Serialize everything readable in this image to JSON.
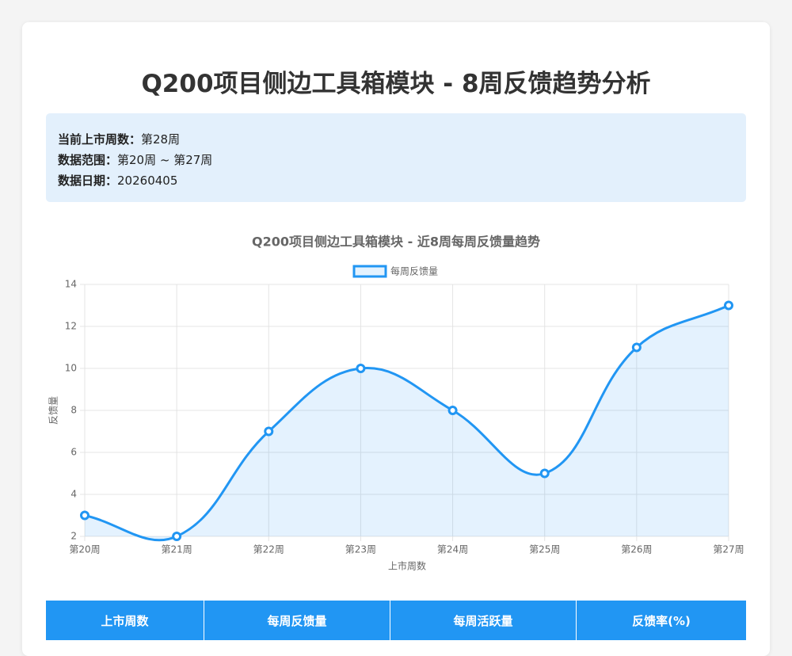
{
  "header": {
    "title": "Q200项目侧边工具箱模块 - 8周反馈趋势分析"
  },
  "info": [
    {
      "label": "当前上市周数：",
      "value": "第28周"
    },
    {
      "label": "数据范围：",
      "value": "第20周 ~ 第27周"
    },
    {
      "label": "数据日期：",
      "value": "20260405"
    }
  ],
  "chart_data": {
    "type": "line",
    "title": "Q200项目侧边工具箱模块 - 近8周每周反馈量趋势",
    "x_label": "上市周数",
    "y_label": "反馈量",
    "categories": [
      "第20周",
      "第21周",
      "第22周",
      "第23周",
      "第24周",
      "第25周",
      "第26周",
      "第27周"
    ],
    "series": [
      {
        "name": "每周反馈量",
        "color": "#2196f3",
        "values": [
          3,
          2,
          7,
          10,
          8,
          5,
          11,
          13
        ]
      }
    ],
    "ylim": [
      2,
      14
    ],
    "yticks": [
      2,
      4,
      6,
      8,
      10,
      12,
      14
    ],
    "grid": true,
    "fill": true,
    "legend": "top"
  },
  "table": {
    "headers": [
      "上市周数",
      "每周反馈量",
      "每周活跃量",
      "反馈率(%)"
    ]
  }
}
